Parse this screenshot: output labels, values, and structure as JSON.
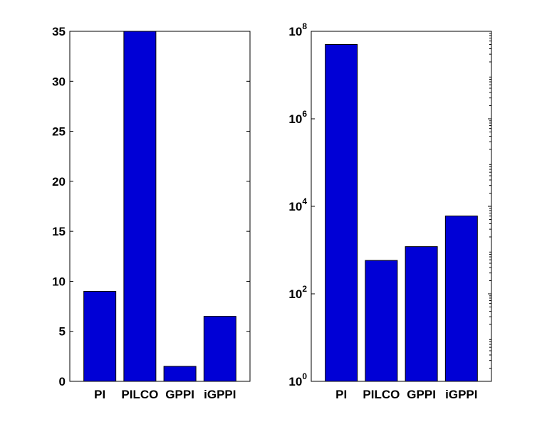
{
  "colors": {
    "bar_fill": "#0000d6",
    "bar_edge": "#000000",
    "axes": "#000000",
    "background": "#ffffff"
  },
  "chart_data": [
    {
      "type": "bar",
      "title": "",
      "xlabel": "",
      "ylabel": "",
      "categories": [
        "PI",
        "PILCO",
        "GPPI",
        "iGPPI"
      ],
      "values": [
        9,
        35,
        1.5,
        6.5
      ],
      "ylim": [
        0,
        35
      ],
      "yscale": "linear",
      "yticks": [
        0,
        5,
        10,
        15,
        20,
        25,
        30,
        35
      ],
      "ytick_labels": [
        "0",
        "5",
        "10",
        "15",
        "20",
        "25",
        "30",
        "35"
      ],
      "grid": false
    },
    {
      "type": "bar",
      "title": "",
      "xlabel": "",
      "ylabel": "",
      "categories": [
        "PI",
        "PILCO",
        "GPPI",
        "iGPPI"
      ],
      "values": [
        50000000,
        580,
        1200,
        6000
      ],
      "ylim": [
        1,
        100000000
      ],
      "yscale": "log",
      "yticks": [
        1,
        100,
        10000,
        1000000,
        100000000
      ],
      "ytick_labels": [
        {
          "base": "10",
          "exp": "0"
        },
        {
          "base": "10",
          "exp": "2"
        },
        {
          "base": "10",
          "exp": "4"
        },
        {
          "base": "10",
          "exp": "6"
        },
        {
          "base": "10",
          "exp": "8"
        }
      ],
      "grid": false
    }
  ]
}
